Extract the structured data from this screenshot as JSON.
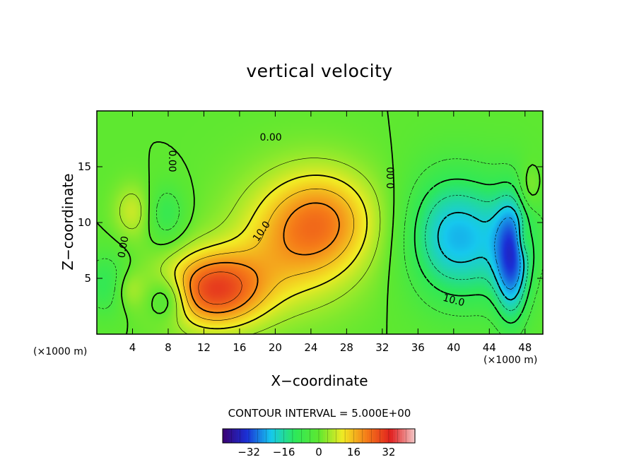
{
  "chart_data": {
    "type": "heatmap",
    "subtype": "filled contour",
    "title": "vertical velocity",
    "xlabel": "X−coordinate",
    "ylabel": "Z−coordinate",
    "x_unit_label": "(×1000 m)",
    "x_unit_label_right": "(×1000 m)",
    "xlim": [
      0,
      50
    ],
    "ylim": [
      0,
      20
    ],
    "x_ticks": [
      4,
      8,
      12,
      16,
      20,
      24,
      28,
      32,
      36,
      40,
      44,
      48
    ],
    "x_tick_labels": [
      "4",
      "8",
      "12",
      "16",
      "20",
      "24",
      "28",
      "32",
      "36",
      "40",
      "44",
      "48"
    ],
    "y_ticks": [
      5,
      10,
      15
    ],
    "y_tick_labels": [
      "5",
      "10",
      "15"
    ],
    "contour_interval_text": "CONTOUR INTERVAL = 5.000E+00",
    "contour_interval": 5.0,
    "contour_labels": [
      {
        "text": "0.00",
        "x": 19.5,
        "y": 17.6
      },
      {
        "text": "0.00",
        "x": 8.4,
        "y": 15.5,
        "angle": 90
      },
      {
        "text": "0.00",
        "x": 3.0,
        "y": 7.8,
        "angle": -80
      },
      {
        "text": "10.0",
        "x": 18.5,
        "y": 9.2,
        "angle": -55
      },
      {
        "text": "0.00",
        "x": 33.0,
        "y": 14.0,
        "angle": -90
      },
      {
        "text": "10.0",
        "x": 40.0,
        "y": 3.0,
        "angle": 15
      }
    ],
    "colorbar": {
      "min": -44,
      "max": 44,
      "tick_values": [
        -32,
        -16,
        0,
        16,
        32
      ],
      "tick_labels": [
        "−32",
        "−16",
        "0",
        "16",
        "32"
      ]
    },
    "colormap": [
      "#3a0070",
      "#1a2fd6",
      "#16c8ee",
      "#2de85a",
      "#5ee830",
      "#f2ea24",
      "#f57a18",
      "#e02020",
      "#f4c8c8"
    ],
    "field_features": [
      {
        "sign": "positive",
        "peak": 28,
        "x": 13.2,
        "y": 4.0,
        "sx": 4.0,
        "sy": 2.4
      },
      {
        "sign": "positive",
        "peak": 16,
        "x": 22.5,
        "y": 8.5,
        "sx": 5.0,
        "sy": 4.0
      },
      {
        "sign": "positive",
        "peak": 11,
        "x": 26.0,
        "y": 10.5,
        "sx": 4.0,
        "sy": 3.0
      },
      {
        "sign": "negative",
        "peak": -18,
        "x": 43.0,
        "y": 8.5,
        "sx": 4.5,
        "sy": 4.0
      },
      {
        "sign": "negative",
        "peak": -22,
        "x": 46.5,
        "y": 6.5,
        "sx": 1.3,
        "sy": 3.8
      },
      {
        "sign": "negative",
        "peak": -10,
        "x": 38.5,
        "y": 9.0,
        "sx": 3.0,
        "sy": 4.0
      },
      {
        "sign": "negative",
        "peak": -11,
        "x": 8.0,
        "y": 3.2,
        "sx": 1.6,
        "sy": 1.4
      },
      {
        "sign": "negative",
        "peak": -9,
        "x": 7.8,
        "y": 10.8,
        "sx": 1.5,
        "sy": 1.8
      },
      {
        "sign": "negative",
        "peak": -10,
        "x": 1.0,
        "y": 4.5,
        "sx": 1.8,
        "sy": 2.0
      },
      {
        "sign": "positive",
        "peak": 8,
        "x": 4.0,
        "y": 11.0,
        "sx": 1.5,
        "sy": 1.7
      },
      {
        "sign": "positive",
        "peak": 6,
        "x": 3.5,
        "y": 4.0,
        "sx": 1.2,
        "sy": 1.2
      },
      {
        "sign": "positive",
        "peak": 7,
        "x": 48.5,
        "y": 13.0,
        "sx": 0.9,
        "sy": 1.5
      },
      {
        "sign": "positive",
        "peak": 7,
        "x": 47.8,
        "y": 8.5,
        "sx": 0.6,
        "sy": 1.2
      }
    ],
    "grid": false,
    "legend": "colorbar bottom-center"
  }
}
